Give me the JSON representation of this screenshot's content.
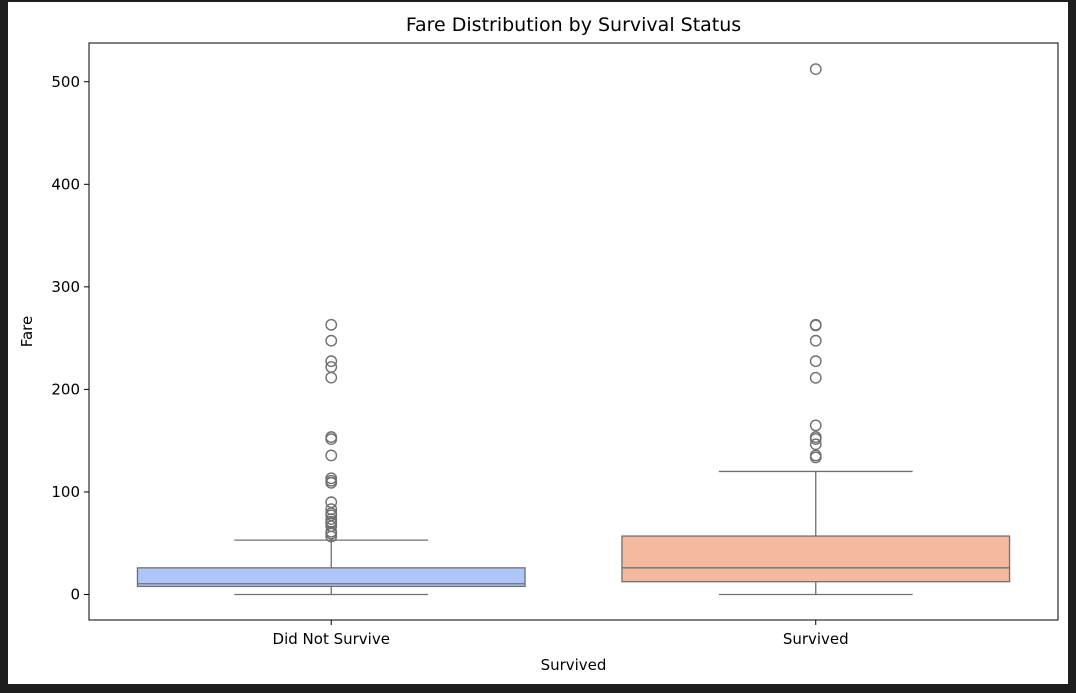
{
  "chart_data": {
    "type": "box",
    "title": "Fare Distribution by Survival Status",
    "xlabel": "Survived",
    "ylabel": "Fare",
    "categories": [
      "Did Not Survive",
      "Survived"
    ],
    "ylim": [
      -25,
      540
    ],
    "yticks": [
      0,
      100,
      200,
      300,
      400,
      500
    ],
    "grid": false,
    "boxes": [
      {
        "category": "Did Not Survive",
        "color": "#aec7f8",
        "whisker_low": 0,
        "q1": 7.9,
        "median": 10.5,
        "q3": 26,
        "whisker_high": 53,
        "outliers": [
          263,
          247.5,
          227.5,
          221.8,
          211.5,
          153.5,
          151.5,
          135.6,
          113.3,
          110.9,
          108.9,
          90,
          83.2,
          79.2,
          77.3,
          73.5,
          71,
          69.6,
          66.6,
          61.2,
          59.4,
          56.5
        ]
      },
      {
        "category": "Survived",
        "color": "#f3baa0",
        "whisker_low": 0,
        "q1": 12.5,
        "median": 26,
        "q3": 57,
        "whisker_high": 120,
        "outliers": [
          512.3,
          263,
          262.4,
          247.5,
          227.5,
          211.3,
          164.9,
          153.5,
          151.6,
          146.5,
          135.6,
          133.7
        ]
      }
    ]
  }
}
